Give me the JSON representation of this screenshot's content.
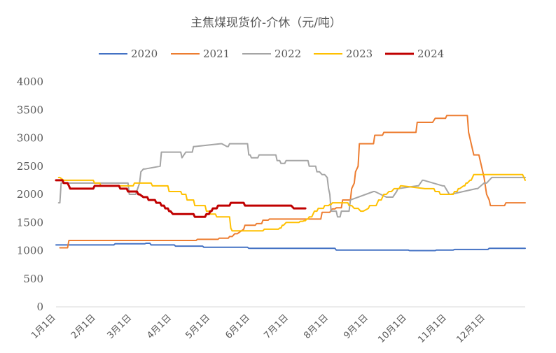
{
  "chart_data": {
    "type": "line",
    "title": "主焦煤现货价-介休（元/吨）",
    "xlabel": "",
    "ylabel": "",
    "ylim": [
      0,
      4000
    ],
    "y_ticks": [
      0,
      500,
      1000,
      1500,
      2000,
      2500,
      3000,
      3500,
      4000
    ],
    "x_ticks": [
      "1月1日",
      "2月1日",
      "3月1日",
      "4月1日",
      "5月1日",
      "6月1日",
      "7月1日",
      "8月1日",
      "9月1日",
      "10月1日",
      "11月1日",
      "12月1日"
    ],
    "x_unit": "day_of_year",
    "x_tick_days": [
      1,
      32,
      60,
      91,
      121,
      152,
      182,
      213,
      244,
      274,
      305,
      335
    ],
    "xlim": [
      1,
      366
    ],
    "grid": false,
    "legend_position": "top",
    "series": [
      {
        "name": "2020",
        "color": "#4472c4",
        "width": 2,
        "x": [
          1,
          46,
          47,
          70,
          71,
          74,
          75,
          93,
          94,
          115,
          116,
          150,
          151,
          218,
          219,
          275,
          276,
          296,
          297,
          310,
          311,
          337,
          338,
          366
        ],
        "y": [
          1100,
          1100,
          1120,
          1120,
          1130,
          1130,
          1100,
          1100,
          1080,
          1080,
          1060,
          1060,
          1040,
          1040,
          1010,
          1010,
          1000,
          1000,
          1010,
          1010,
          1020,
          1020,
          1040,
          1040
        ]
      },
      {
        "name": "2021",
        "color": "#ed7d31",
        "width": 2,
        "x": [
          4,
          10,
          11,
          110,
          111,
          127,
          128,
          135,
          136,
          138,
          140,
          142,
          147,
          148,
          156,
          157,
          161,
          162,
          166,
          167,
          207,
          208,
          214,
          215,
          216,
          218,
          219,
          223,
          224,
          230,
          231,
          233,
          234,
          236,
          237,
          248,
          249,
          255,
          256,
          281,
          282,
          294,
          296,
          304,
          305,
          321,
          322,
          324,
          326,
          330,
          332,
          334,
          336,
          338,
          339,
          350,
          351,
          366
        ],
        "y": [
          1050,
          1050,
          1180,
          1180,
          1200,
          1200,
          1220,
          1220,
          1250,
          1250,
          1300,
          1300,
          1380,
          1450,
          1450,
          1480,
          1480,
          1540,
          1540,
          1560,
          1560,
          1680,
          1680,
          1720,
          1740,
          1740,
          1760,
          1760,
          1900,
          1900,
          2100,
          2200,
          2400,
          2500,
          2900,
          2900,
          3050,
          3050,
          3100,
          3100,
          3280,
          3280,
          3350,
          3350,
          3400,
          3400,
          3100,
          2900,
          2700,
          2700,
          2500,
          2300,
          2000,
          1900,
          1800,
          1800,
          1850,
          1850
        ]
      },
      {
        "name": "2022",
        "color": "#a5a5a5",
        "width": 2,
        "x": [
          3,
          4,
          5,
          6,
          45,
          46,
          52,
          53,
          57,
          58,
          62,
          63,
          66,
          67,
          69,
          70,
          82,
          83,
          84,
          98,
          99,
          102,
          103,
          104,
          105,
          106,
          107,
          108,
          109,
          129,
          130,
          134,
          135,
          136,
          137,
          150,
          151,
          152,
          153,
          158,
          159,
          164,
          165,
          172,
          173,
          175,
          176,
          179,
          180,
          197,
          198,
          203,
          204,
          206,
          208,
          210,
          212,
          213,
          214,
          215,
          219,
          220,
          222,
          223,
          229,
          230,
          248,
          249,
          258,
          259,
          262,
          263,
          266,
          267,
          282,
          283,
          286,
          287,
          302,
          303,
          307,
          308,
          328,
          329,
          334,
          336,
          340,
          366
        ],
        "y": [
          1850,
          1850,
          2200,
          2200,
          2200,
          2200,
          2200,
          2200,
          2200,
          2000,
          2000,
          2000,
          2200,
          2400,
          2450,
          2450,
          2500,
          2750,
          2750,
          2750,
          2650,
          2750,
          2750,
          2750,
          2750,
          2750,
          2750,
          2850,
          2850,
          2900,
          2900,
          2850,
          2850,
          2900,
          2900,
          2900,
          2700,
          2700,
          2650,
          2650,
          2700,
          2700,
          2700,
          2700,
          2600,
          2600,
          2550,
          2550,
          2600,
          2600,
          2500,
          2500,
          2400,
          2400,
          2350,
          2350,
          2300,
          2100,
          2000,
          1700,
          1700,
          1600,
          1600,
          1700,
          1700,
          1900,
          2050,
          2050,
          1950,
          1950,
          1950,
          1950,
          2050,
          2100,
          2150,
          2150,
          2250,
          2250,
          2150,
          2150,
          2000,
          2000,
          2100,
          2100,
          2200,
          2200,
          2300,
          2300
        ]
      },
      {
        "name": "2023",
        "color": "#ffc000",
        "width": 2,
        "x": [
          3,
          4,
          7,
          30,
          31,
          35,
          36,
          61,
          62,
          75,
          76,
          88,
          89,
          98,
          99,
          100,
          101,
          102,
          103,
          104,
          105,
          106,
          107,
          108,
          109,
          113,
          114,
          117,
          118,
          119,
          120,
          121,
          125,
          126,
          128,
          130,
          132,
          136,
          137,
          138,
          139,
          140,
          141,
          142,
          143,
          162,
          163,
          165,
          166,
          174,
          175,
          176,
          177,
          178,
          180,
          190,
          191,
          193,
          194,
          195,
          196,
          197,
          198,
          200,
          202,
          204,
          205,
          209,
          210,
          213,
          214,
          215,
          216,
          217,
          218,
          220,
          225,
          228,
          229,
          231,
          233,
          236,
          238,
          240,
          244,
          245,
          250,
          252,
          254,
          256,
          258,
          260,
          262,
          264,
          268,
          269,
          270,
          288,
          289,
          290,
          295,
          296,
          297,
          298,
          299,
          300,
          310,
          311,
          313,
          314,
          315,
          318,
          319,
          320,
          321,
          323,
          324,
          325,
          326,
          345,
          346,
          364,
          366
        ],
        "y": [
          2300,
          2300,
          2250,
          2250,
          2200,
          2200,
          2150,
          2150,
          2200,
          2200,
          2150,
          2150,
          2050,
          2050,
          2000,
          2000,
          2000,
          2000,
          1900,
          1900,
          1900,
          1900,
          1900,
          1900,
          1800,
          1800,
          1800,
          1800,
          1700,
          1700,
          1700,
          1650,
          1650,
          1600,
          1600,
          1600,
          1600,
          1600,
          1400,
          1350,
          1350,
          1350,
          1350,
          1350,
          1350,
          1350,
          1380,
          1380,
          1380,
          1380,
          1400,
          1400,
          1450,
          1450,
          1500,
          1500,
          1520,
          1520,
          1530,
          1530,
          1560,
          1560,
          1600,
          1600,
          1700,
          1700,
          1750,
          1750,
          1800,
          1800,
          1820,
          1820,
          1850,
          1850,
          1850,
          1850,
          1850,
          1850,
          1800,
          1800,
          1750,
          1750,
          1700,
          1700,
          1750,
          1800,
          1800,
          1900,
          1900,
          2000,
          2000,
          2050,
          2050,
          2100,
          2100,
          2150,
          2150,
          2100,
          2100,
          2100,
          2100,
          2050,
          2050,
          2050,
          2050,
          2000,
          2000,
          2050,
          2050,
          2100,
          2100,
          2150,
          2150,
          2200,
          2200,
          2250,
          2250,
          2300,
          2350,
          2350,
          2350,
          2350,
          2250
        ]
      },
      {
        "name": "2024",
        "color": "#c00000",
        "width": 3,
        "x": [
          1,
          6,
          7,
          9,
          10,
          11,
          12,
          28,
          29,
          30,
          31,
          50,
          51,
          53,
          54,
          56,
          57,
          63,
          64,
          65,
          66,
          69,
          70,
          72,
          73,
          78,
          79,
          82,
          83,
          85,
          86,
          88,
          89,
          90,
          92,
          93,
          99,
          100,
          108,
          109,
          117,
          118,
          120,
          121,
          122,
          123,
          126,
          127,
          128,
          129,
          136,
          137,
          144,
          145,
          147,
          148,
          151,
          152,
          163,
          164,
          176,
          177,
          183,
          184,
          186,
          187,
          195
        ],
        "y": [
          2250,
          2250,
          2200,
          2200,
          2200,
          2150,
          2100,
          2100,
          2100,
          2100,
          2150,
          2150,
          2100,
          2100,
          2100,
          2100,
          2050,
          2050,
          2050,
          2000,
          2000,
          1950,
          1950,
          1950,
          1900,
          1900,
          1850,
          1850,
          1800,
          1800,
          1750,
          1750,
          1700,
          1700,
          1650,
          1650,
          1650,
          1650,
          1650,
          1600,
          1600,
          1650,
          1650,
          1700,
          1700,
          1750,
          1750,
          1800,
          1800,
          1800,
          1800,
          1850,
          1850,
          1850,
          1850,
          1800,
          1800,
          1800,
          1800,
          1800,
          1800,
          1800,
          1800,
          1800,
          1750,
          1750,
          1750
        ]
      }
    ]
  }
}
